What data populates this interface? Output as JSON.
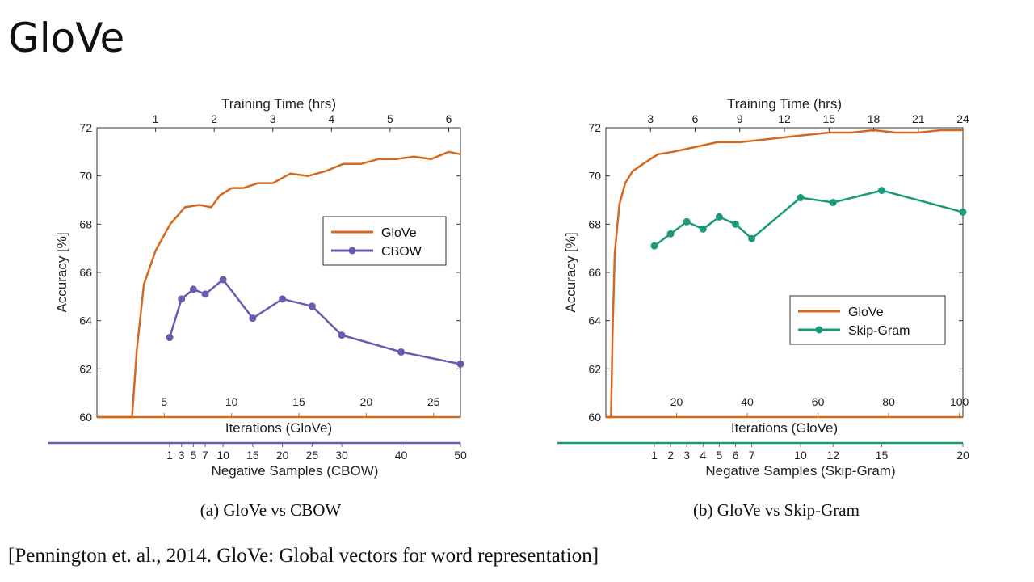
{
  "slide": {
    "title": "GloVe",
    "citation": "[Pennington et. al., 2014. GloVe: Global vectors for word representation]"
  },
  "colors": {
    "glove": "#d2691e",
    "cbow": "#6a5ab0",
    "skipgram": "#1a9a78"
  },
  "chart_data": [
    {
      "type": "line",
      "caption": "(a) GloVe vs CBOW",
      "ylabel": "Accuracy [%]",
      "ylim": [
        60,
        72
      ],
      "yticks": [
        60,
        62,
        64,
        66,
        68,
        70,
        72
      ],
      "legend_position": "center-right",
      "top_axis": {
        "label": "Training Time (hrs)",
        "range": [
          0,
          6.2
        ],
        "ticks": [
          1,
          2,
          3,
          4,
          5,
          6
        ]
      },
      "iterations_axis": {
        "label": "Iterations (GloVe)",
        "range": [
          0,
          27
        ],
        "ticks": [
          5,
          10,
          15,
          20,
          25
        ]
      },
      "samples_axis": {
        "label": "Negative Samples (CBOW)",
        "ticks": [
          1,
          3,
          5,
          7,
          10,
          15,
          20,
          25,
          30,
          40,
          50
        ],
        "tick_labels": [
          "1",
          "3",
          "5",
          "7",
          "10",
          "15",
          "20",
          "25",
          "30",
          "40",
          "50"
        ]
      },
      "series": [
        {
          "name": "GloVe",
          "color": "#d2691e",
          "markers": false,
          "x": [
            0,
            0.6,
            0.68,
            0.8,
            1.0,
            1.25,
            1.5,
            1.75,
            1.95,
            2.1,
            2.3,
            2.5,
            2.75,
            3.0,
            3.3,
            3.6,
            3.9,
            4.2,
            4.5,
            4.8,
            5.1,
            5.4,
            5.7,
            6.0,
            6.2
          ],
          "y": [
            60,
            60,
            62.8,
            65.5,
            66.9,
            68.0,
            68.7,
            68.8,
            68.7,
            69.2,
            69.5,
            69.5,
            69.7,
            69.7,
            70.1,
            70.0,
            70.2,
            70.5,
            70.5,
            70.7,
            70.7,
            70.8,
            70.7,
            71.0,
            70.9
          ]
        },
        {
          "name": "CBOW",
          "color": "#6a5ab0",
          "markers": true,
          "x": [
            1,
            3,
            5,
            7,
            10,
            15,
            20,
            25,
            30,
            40,
            50
          ],
          "y": [
            63.3,
            64.9,
            65.3,
            65.1,
            65.7,
            64.1,
            64.9,
            64.6,
            63.4,
            62.7,
            62.2
          ]
        }
      ]
    },
    {
      "type": "line",
      "caption": "(b) GloVe vs Skip-Gram",
      "ylabel": "Accuracy [%]",
      "ylim": [
        60,
        72
      ],
      "yticks": [
        60,
        62,
        64,
        66,
        68,
        70,
        72
      ],
      "legend_position": "bottom-right",
      "top_axis": {
        "label": "Training Time (hrs)",
        "range": [
          0,
          24
        ],
        "ticks": [
          3,
          6,
          9,
          12,
          15,
          18,
          21,
          24
        ]
      },
      "iterations_axis": {
        "label": "Iterations (GloVe)",
        "range": [
          0,
          101
        ],
        "ticks": [
          20,
          40,
          60,
          80,
          100
        ]
      },
      "samples_axis": {
        "label": "Negative Samples (Skip-Gram)",
        "ticks": [
          1,
          2,
          3,
          4,
          5,
          6,
          7,
          10,
          12,
          15,
          20
        ],
        "tick_labels": [
          "1",
          "2",
          "3",
          "4",
          "5",
          "6",
          "7",
          "10",
          "12",
          "15",
          "20"
        ]
      },
      "series": [
        {
          "name": "GloVe",
          "color": "#d2691e",
          "markers": false,
          "x": [
            0,
            0.35,
            0.45,
            0.6,
            0.9,
            1.3,
            1.8,
            2.5,
            3.5,
            4.5,
            6,
            7.5,
            9,
            10.5,
            12,
            13.5,
            15,
            16.5,
            18,
            19.5,
            21,
            22.5,
            24
          ],
          "y": [
            60,
            60,
            63.5,
            66.8,
            68.8,
            69.7,
            70.2,
            70.5,
            70.9,
            71.0,
            71.2,
            71.4,
            71.4,
            71.5,
            71.6,
            71.7,
            71.8,
            71.8,
            71.9,
            71.8,
            71.8,
            71.9,
            71.9
          ]
        },
        {
          "name": "Skip-Gram",
          "color": "#1a9a78",
          "markers": true,
          "x": [
            1,
            2,
            3,
            4,
            5,
            6,
            7,
            10,
            12,
            15,
            20
          ],
          "y": [
            67.1,
            67.6,
            68.1,
            67.8,
            68.3,
            68.0,
            67.4,
            69.1,
            68.9,
            69.4,
            68.5
          ]
        }
      ]
    }
  ]
}
